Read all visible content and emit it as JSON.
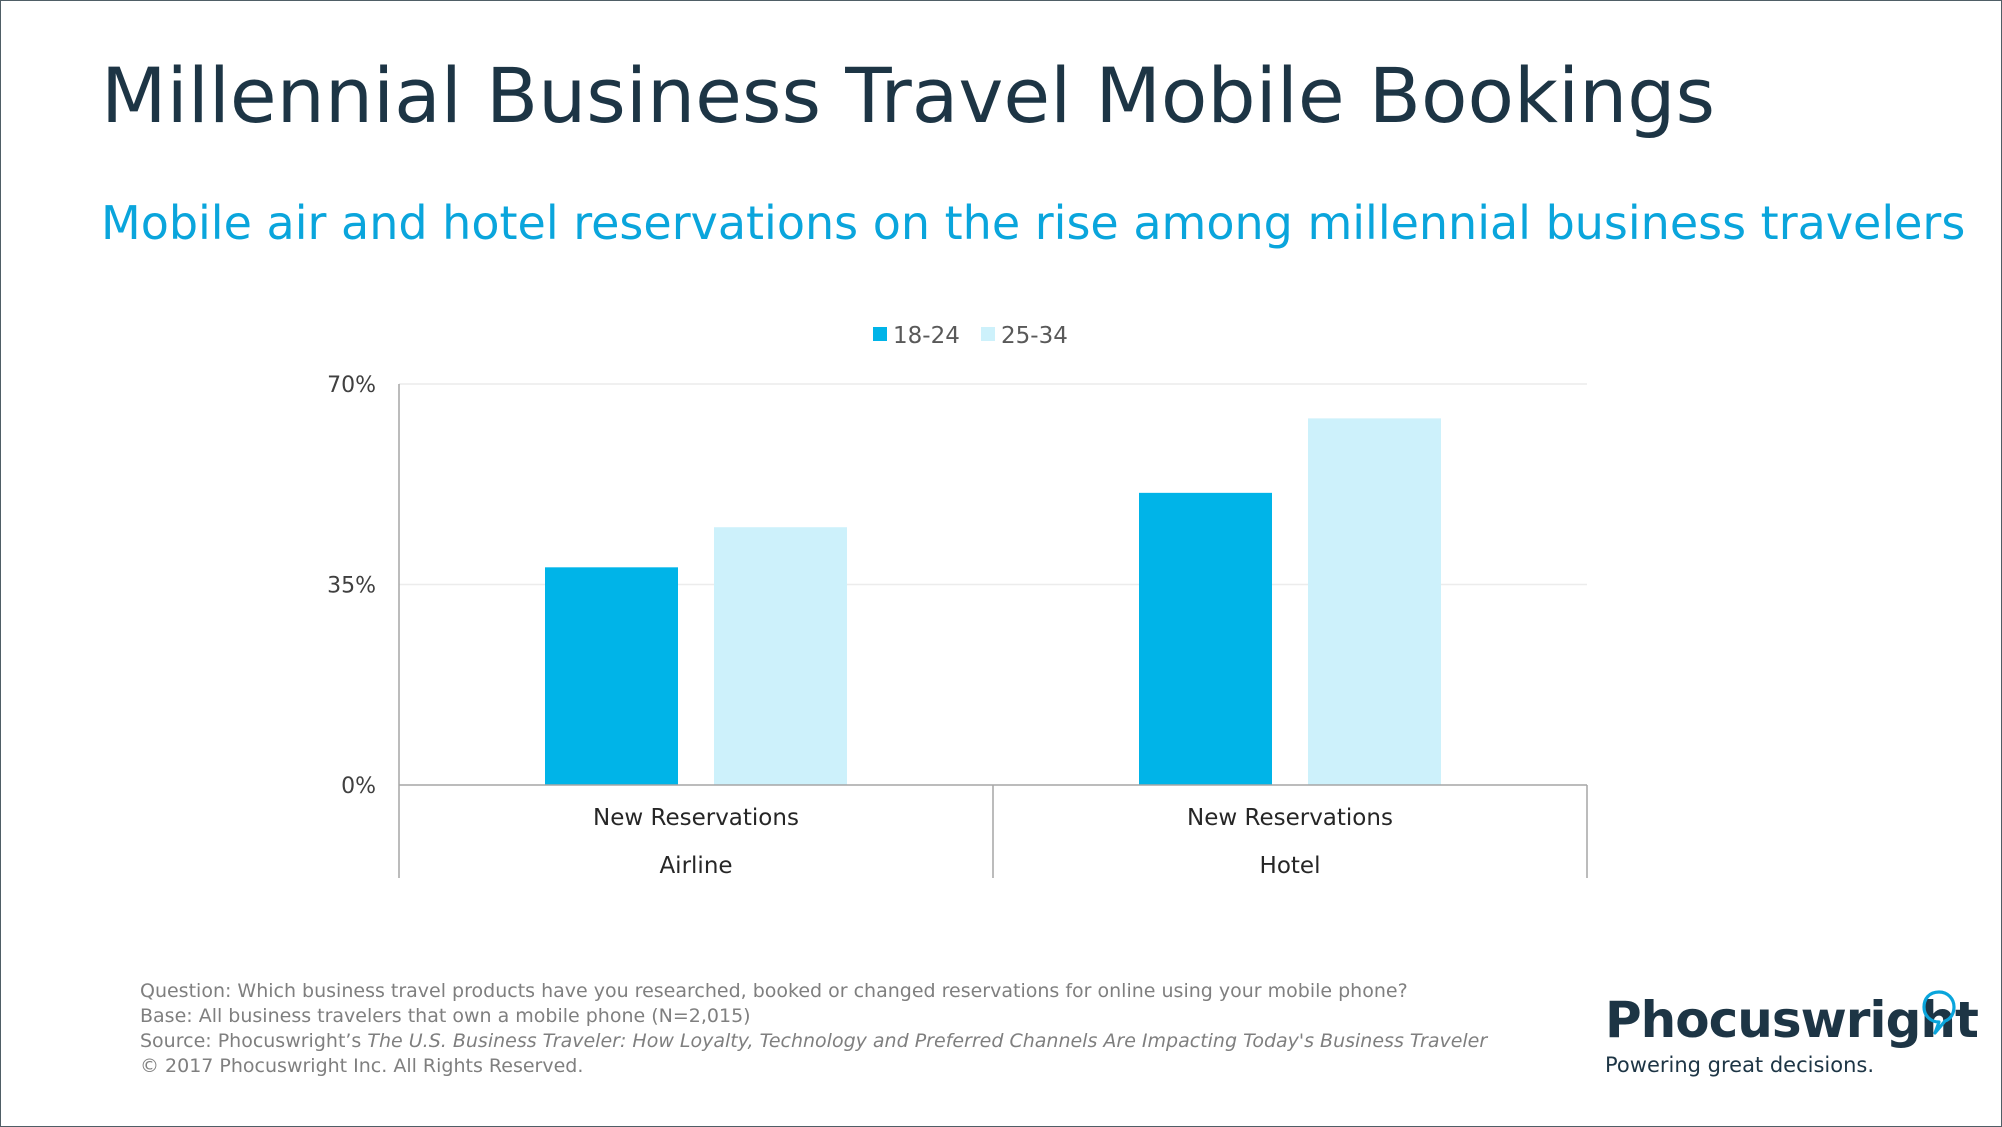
{
  "title": "Millennial Business Travel Mobile Bookings",
  "subtitle": "Mobile air and hotel reservations on the rise among millennial business travelers",
  "colors": {
    "title": "#1d3545",
    "subtitle": "#0aa5dc",
    "series_18_24": "#00b4e8",
    "series_25_34": "#cdf1fb"
  },
  "chart_data": {
    "type": "bar",
    "categories": [
      {
        "label": "New Reservations",
        "group": "Airline"
      },
      {
        "label": "New Reservations",
        "group": "Hotel"
      }
    ],
    "series": [
      {
        "name": "18-24",
        "color": "#00b4e8",
        "values": [
          38,
          51
        ]
      },
      {
        "name": "25-34",
        "color": "#cdf1fb",
        "values": [
          45,
          64
        ]
      }
    ],
    "y_ticks": [
      "70%",
      "35%",
      "0%"
    ],
    "ylim": [
      0,
      70
    ],
    "legend_position": "top",
    "gridlines": true
  },
  "footnotes": {
    "question": "Question: Which business travel products have you researched, booked or changed reservations for online using your mobile phone?",
    "base": "Base: All business travelers that own a mobile phone (N=2,015)",
    "source_prefix": "Source: Phocuswright’s ",
    "source_title": "The U.S. Business Traveler: How Loyalty, Technology and Preferred Channels Are Impacting Today's Business Traveler",
    "copyright": "© 2017 Phocuswright Inc. All Rights Reserved."
  },
  "logo": {
    "name": "Phocuswright",
    "tagline": "Powering great decisions."
  }
}
